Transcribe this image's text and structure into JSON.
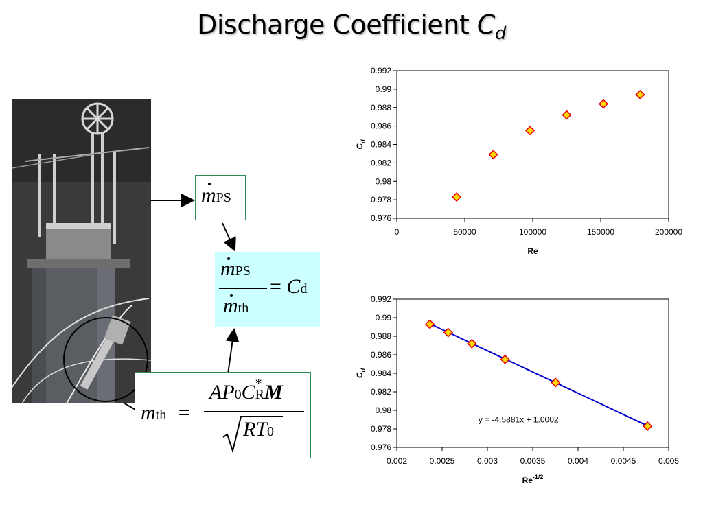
{
  "slide": {
    "title_main": "Discharge Coefficient ",
    "title_var": "C",
    "title_sub": "d"
  },
  "photo": {
    "annotation_circle": "true"
  },
  "equations": {
    "mdot_ps": {
      "symbol": "m",
      "subscript": "PS"
    },
    "ratio": {
      "numerator_symbol": "m",
      "numerator_sub": "PS",
      "denominator_symbol": "m",
      "denominator_sub": "th",
      "equals": "=",
      "result_symbol": "C",
      "result_sub": "d"
    },
    "mdot_th": {
      "lhs_symbol": "m",
      "lhs_sub": "th",
      "equals": "=",
      "numerator": "AP",
      "numerator_p_sub": "0",
      "c_symbol": "C",
      "c_sup": "*",
      "c_sub": "R",
      "mach_symbol": "M",
      "denominator": "RT",
      "denominator_sub": "0"
    }
  },
  "colors": {
    "marker_fill": "#ffd700",
    "marker_stroke": "#e8000b",
    "trendline": "#0000cc",
    "box_fill": "#ccffff",
    "box_border": "#2e8b57"
  },
  "chart_data": [
    {
      "type": "scatter",
      "xlabel": "Re",
      "ylabel_main": "C",
      "ylabel_sub": "d",
      "xlim": [
        0,
        200000
      ],
      "ylim": [
        0.976,
        0.992
      ],
      "x_ticks": [
        "0",
        "50000",
        "100000",
        "150000",
        "200000"
      ],
      "y_ticks": [
        "0.976",
        "0.978",
        "0.98",
        "0.982",
        "0.984",
        "0.986",
        "0.988",
        "0.99",
        "0.992"
      ],
      "x_tick_values": [
        0,
        50000,
        100000,
        150000,
        200000
      ],
      "y_tick_values": [
        0.976,
        0.978,
        0.98,
        0.982,
        0.984,
        0.986,
        0.988,
        0.99,
        0.992
      ],
      "points": [
        {
          "x": 44000,
          "y": 0.9783
        },
        {
          "x": 71000,
          "y": 0.9829
        },
        {
          "x": 98000,
          "y": 0.9855
        },
        {
          "x": 125000,
          "y": 0.9872
        },
        {
          "x": 152000,
          "y": 0.9884
        },
        {
          "x": 179000,
          "y": 0.9894
        }
      ]
    },
    {
      "type": "scatter",
      "xlabel": "Re",
      "xlabel_sup": "-1/2",
      "ylabel_main": "C",
      "ylabel_sub": "d",
      "xlim": [
        0.002,
        0.005
      ],
      "ylim": [
        0.976,
        0.992
      ],
      "x_ticks": [
        "0.002",
        "0.0025",
        "0.003",
        "0.0035",
        "0.004",
        "0.0045",
        "0.005"
      ],
      "y_ticks": [
        "0.976",
        "0.978",
        "0.98",
        "0.982",
        "0.984",
        "0.986",
        "0.988",
        "0.99",
        "0.992"
      ],
      "x_tick_values": [
        0.002,
        0.0025,
        0.003,
        0.0035,
        0.004,
        0.0045,
        0.005
      ],
      "y_tick_values": [
        0.976,
        0.978,
        0.98,
        0.982,
        0.984,
        0.986,
        0.988,
        0.99,
        0.992
      ],
      "points": [
        {
          "x": 0.002364,
          "y": 0.9893
        },
        {
          "x": 0.002567,
          "y": 0.9884
        },
        {
          "x": 0.002828,
          "y": 0.9872
        },
        {
          "x": 0.003194,
          "y": 0.9855
        },
        {
          "x": 0.003753,
          "y": 0.983
        },
        {
          "x": 0.004767,
          "y": 0.9783
        }
      ],
      "trendline": {
        "slope": -4.5881,
        "intercept": 1.0002,
        "x_range": [
          0.002364,
          0.004767
        ]
      },
      "equation_label": "y = -4.5881x + 1.0002"
    }
  ]
}
